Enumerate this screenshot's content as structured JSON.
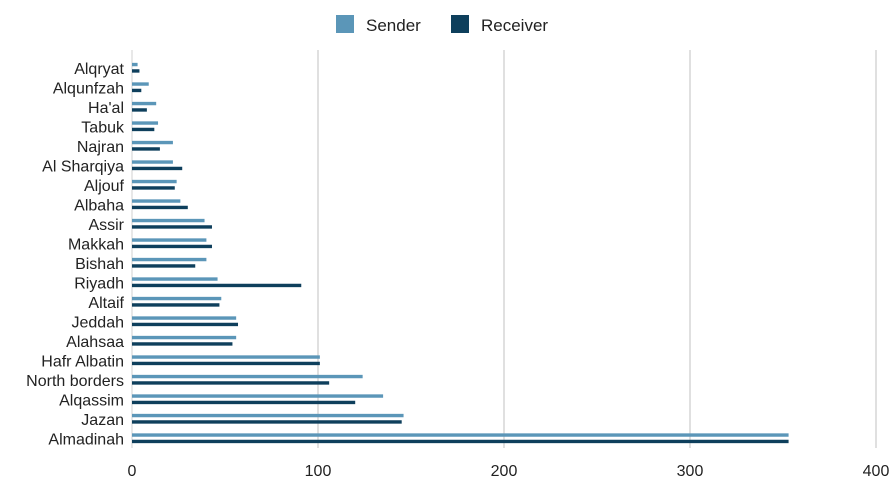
{
  "chart_data": {
    "type": "bar",
    "orientation": "horizontal",
    "title": "",
    "xlabel": "",
    "ylabel": "",
    "categories": [
      "Alqryat",
      "Alqunfzah",
      "Ha'al",
      "Tabuk",
      "Najran",
      "Al Sharqiya",
      "Aljouf",
      "Albaha",
      "Assir",
      "Makkah",
      "Bishah",
      "Riyadh",
      "Altaif",
      "Jeddah",
      "Alahsaa",
      "Hafr Albatin",
      "North borders",
      "Alqassim",
      "Jazan",
      "Almadinah"
    ],
    "series": [
      {
        "name": "Sender",
        "color": "#5b96b8",
        "values": [
          3,
          9,
          13,
          14,
          22,
          22,
          24,
          26,
          39,
          40,
          40,
          46,
          48,
          56,
          56,
          101,
          124,
          135,
          146,
          353
        ]
      },
      {
        "name": "Receiver",
        "color": "#0e3f5c",
        "values": [
          4,
          5,
          8,
          12,
          15,
          27,
          23,
          30,
          43,
          43,
          34,
          91,
          47,
          57,
          54,
          101,
          106,
          120,
          145,
          353
        ]
      }
    ],
    "xlim": [
      0,
      400
    ],
    "xticks": [
      "0",
      "100",
      "200",
      "300",
      "400"
    ],
    "grid": "vertical",
    "legend": "top-center"
  }
}
